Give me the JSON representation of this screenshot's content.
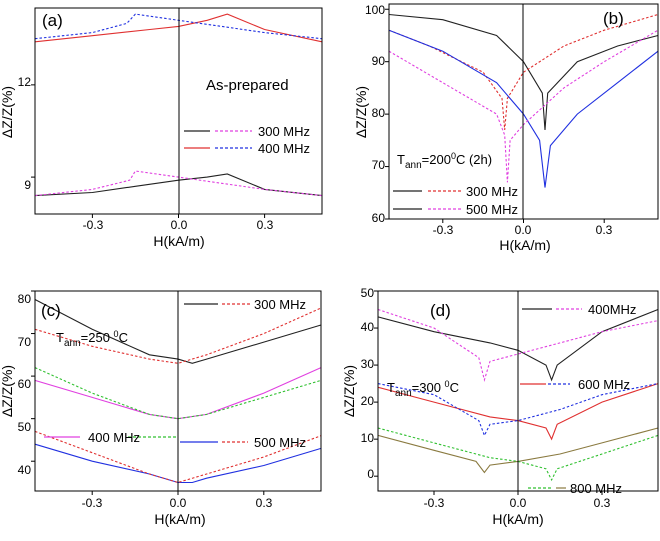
{
  "chart_data": [
    {
      "type": "line",
      "panel": "(a)",
      "annotation": "As-prepared",
      "xlabel": "H(kA/m)",
      "ylabel": "ΔZ/Z(%)",
      "xlim": [
        -0.5,
        0.5
      ],
      "ylim": [
        7.8,
        14.5
      ],
      "xticks": [
        -0.3,
        0.0,
        0.3
      ],
      "xtick_labels": [
        "-0.3",
        "0.0",
        "0.3"
      ],
      "yticks": [
        9,
        12
      ],
      "ytick_labels": [
        "9",
        "12"
      ],
      "legend_rows": [
        {
          "label": "300 MHz",
          "solid_color": "#222222",
          "dashed_color": "#e040e0"
        },
        {
          "label": "400 MHz",
          "solid_color": "#e03030",
          "dashed_color": "#2030e0"
        }
      ],
      "series": [
        {
          "name": "300 MHz solid",
          "color": "#222222",
          "dash": false,
          "x": [
            -0.5,
            -0.3,
            -0.15,
            0,
            0.1,
            0.17,
            0.3,
            0.5
          ],
          "y": [
            8.4,
            8.5,
            8.7,
            8.9,
            9.0,
            9.1,
            8.6,
            8.4
          ]
        },
        {
          "name": "300 MHz dashed",
          "color": "#e040e0",
          "dash": true,
          "x": [
            -0.5,
            -0.3,
            -0.17,
            -0.15,
            0,
            0.15,
            0.3,
            0.5
          ],
          "y": [
            8.4,
            8.6,
            8.9,
            9.2,
            9.0,
            8.8,
            8.6,
            8.4
          ]
        },
        {
          "name": "400 MHz solid",
          "color": "#e03030",
          "dash": false,
          "x": [
            -0.5,
            -0.3,
            -0.1,
            0,
            0.1,
            0.17,
            0.3,
            0.5
          ],
          "y": [
            13.4,
            13.6,
            13.8,
            13.9,
            14.1,
            14.3,
            13.8,
            13.4
          ]
        },
        {
          "name": "400 MHz dashed",
          "color": "#2030e0",
          "dash": true,
          "x": [
            -0.5,
            -0.3,
            -0.18,
            -0.15,
            0,
            0.15,
            0.3,
            0.5
          ],
          "y": [
            13.5,
            13.7,
            14.0,
            14.3,
            14.1,
            13.9,
            13.7,
            13.5
          ]
        }
      ]
    },
    {
      "type": "line",
      "panel": "(b)",
      "annotation_parts": [
        "T",
        "ann",
        "=200",
        "0",
        "C (2h)"
      ],
      "xlabel": "H(kA/m)",
      "ylabel": "ΔZ/Z(%)",
      "xlim": [
        -0.5,
        0.5
      ],
      "ylim": [
        60,
        101
      ],
      "xticks": [
        -0.3,
        0.0,
        0.3
      ],
      "xtick_labels": [
        "-0.3",
        "0.0",
        "0.3"
      ],
      "yticks": [
        60,
        70,
        80,
        90,
        100
      ],
      "ytick_labels": [
        "60",
        "70",
        "80",
        "90",
        "100"
      ],
      "legend_rows": [
        {
          "label": "300 MHz",
          "solid_color": "#222222",
          "dashed_color": "#e03030"
        },
        {
          "label": "500 MHz",
          "solid_color": "#222222",
          "dashed_color": "#e040e0"
        }
      ],
      "series": [
        {
          "name": "300 MHz solid",
          "color": "#222222",
          "dash": false,
          "x": [
            -0.5,
            -0.3,
            -0.1,
            0,
            0.07,
            0.08,
            0.09,
            0.2,
            0.35,
            0.5
          ],
          "y": [
            99,
            98,
            95,
            90,
            84,
            77,
            84,
            90,
            93,
            95
          ]
        },
        {
          "name": "300 MHz dashed",
          "color": "#e03030",
          "dash": true,
          "x": [
            -0.5,
            -0.35,
            -0.15,
            -0.08,
            -0.07,
            -0.06,
            0,
            0.15,
            0.3,
            0.5
          ],
          "y": [
            96,
            93,
            88,
            83,
            77,
            83,
            88,
            93,
            96,
            99
          ]
        },
        {
          "name": "500 MHz solid",
          "color": "#2030e0",
          "dash": false,
          "x": [
            -0.5,
            -0.3,
            -0.1,
            0,
            0.06,
            0.08,
            0.1,
            0.2,
            0.35,
            0.5
          ],
          "y": [
            96,
            92,
            86,
            80,
            75,
            66,
            74,
            80,
            86,
            92
          ]
        },
        {
          "name": "500 MHz dashed",
          "color": "#e040e0",
          "dash": true,
          "x": [
            -0.5,
            -0.3,
            -0.1,
            -0.07,
            -0.06,
            -0.05,
            0,
            0.15,
            0.3,
            0.5
          ],
          "y": [
            92,
            86,
            80,
            76,
            67,
            75,
            78,
            85,
            90,
            96
          ]
        }
      ]
    },
    {
      "type": "line",
      "panel": "(c)",
      "annotation_parts": [
        "T",
        "ann",
        "=250 ",
        "0",
        "C"
      ],
      "xlabel": "H(kA/m)",
      "ylabel": "ΔZ/Z(%)",
      "xlim": [
        -0.5,
        0.5
      ],
      "ylim": [
        33,
        80
      ],
      "xticks": [
        -0.3,
        0.0,
        0.3
      ],
      "xtick_labels": [
        "-0.3",
        "0.0",
        "0.3"
      ],
      "yticks": [
        40,
        50,
        60,
        70,
        80
      ],
      "ytick_labels": [
        "40",
        "50",
        "60",
        "70",
        "80"
      ],
      "legend_rows": [
        {
          "label": "300 MHz",
          "solid_color": "#222222",
          "dashed_color": "#e03030"
        },
        {
          "label": "400 MHz",
          "solid_color": "#e040e0",
          "dashed_color": "#30c030"
        },
        {
          "label": "500 MHz",
          "solid_color": "#2030e0",
          "dashed_color": "#e03030"
        }
      ],
      "series": [
        {
          "name": "300 MHz solid",
          "color": "#222222",
          "dash": false,
          "x": [
            -0.5,
            -0.3,
            -0.1,
            0,
            0.05,
            0.1,
            0.3,
            0.5
          ],
          "y": [
            78,
            71,
            65,
            64,
            63,
            64,
            68,
            72
          ]
        },
        {
          "name": "300 MHz dashed",
          "color": "#e03030",
          "dash": true,
          "x": [
            -0.5,
            -0.3,
            -0.1,
            0,
            0.1,
            0.3,
            0.5
          ],
          "y": [
            71,
            67,
            64,
            63,
            65,
            70,
            76
          ]
        },
        {
          "name": "400 MHz solid",
          "color": "#e040e0",
          "dash": false,
          "x": [
            -0.5,
            -0.3,
            -0.1,
            0,
            0.1,
            0.3,
            0.5
          ],
          "y": [
            59,
            55,
            51,
            50,
            51,
            56,
            62
          ]
        },
        {
          "name": "400 MHz dashed",
          "color": "#30c030",
          "dash": true,
          "x": [
            -0.5,
            -0.3,
            -0.1,
            0,
            0.1,
            0.3,
            0.5
          ],
          "y": [
            62,
            56,
            51,
            50,
            51,
            55,
            59
          ]
        },
        {
          "name": "500 MHz solid",
          "color": "#2030e0",
          "dash": false,
          "x": [
            -0.5,
            -0.3,
            -0.1,
            0,
            0.05,
            0.1,
            0.3,
            0.5
          ],
          "y": [
            44,
            40,
            37,
            35,
            35,
            36,
            39,
            43
          ]
        },
        {
          "name": "500 MHz dashed",
          "color": "#e03030",
          "dash": true,
          "x": [
            -0.5,
            -0.3,
            -0.1,
            0,
            0.1,
            0.3,
            0.5
          ],
          "y": [
            47,
            42,
            37,
            35,
            37,
            41,
            46
          ]
        }
      ]
    },
    {
      "type": "line",
      "panel": "(d)",
      "annotation_parts": [
        "T",
        "ann",
        "=300 ",
        "0",
        "C"
      ],
      "xlabel": "H(kA/m)",
      "ylabel": "ΔZ/Z(%)",
      "xlim": [
        -0.5,
        0.5
      ],
      "ylim": [
        -4,
        50
      ],
      "xticks": [
        -0.3,
        0.0,
        0.3
      ],
      "xtick_labels": [
        "-0.3",
        "0.0",
        "0.3"
      ],
      "yticks": [
        0,
        10,
        20,
        30,
        40,
        50
      ],
      "ytick_labels": [
        "0",
        "10",
        "20",
        "30",
        "40",
        "50"
      ],
      "legend_rows": [
        {
          "label": "400MHz",
          "solid_color": "#222222",
          "dashed_color": "#e040e0"
        },
        {
          "label": "600 MHz",
          "solid_color": "#e03030",
          "dashed_color": "#2030e0"
        },
        {
          "label": "800 MHz",
          "solid_color": "#8a7a40",
          "dashed_color": "#30c030"
        }
      ],
      "series": [
        {
          "name": "400MHz solid",
          "color": "#222222",
          "dash": false,
          "x": [
            -0.5,
            -0.3,
            -0.1,
            0,
            0.1,
            0.12,
            0.14,
            0.3,
            0.5
          ],
          "y": [
            43,
            39,
            36,
            34,
            30,
            26,
            30,
            39,
            45
          ]
        },
        {
          "name": "400MHz dashed",
          "color": "#e040e0",
          "dash": true,
          "x": [
            -0.5,
            -0.3,
            -0.14,
            -0.12,
            -0.1,
            0,
            0.15,
            0.3,
            0.5
          ],
          "y": [
            45,
            40,
            32,
            26,
            31,
            33,
            36,
            39,
            42
          ]
        },
        {
          "name": "600 MHz solid",
          "color": "#e03030",
          "dash": false,
          "x": [
            -0.5,
            -0.3,
            -0.1,
            0,
            0.1,
            0.12,
            0.14,
            0.3,
            0.5
          ],
          "y": [
            24,
            20,
            16,
            15,
            13,
            10,
            14,
            20,
            25
          ]
        },
        {
          "name": "600 MHz dashed",
          "color": "#2030e0",
          "dash": true,
          "x": [
            -0.5,
            -0.3,
            -0.14,
            -0.12,
            -0.1,
            0,
            0.15,
            0.3,
            0.5
          ],
          "y": [
            25,
            22,
            15,
            11,
            14,
            15,
            18,
            22,
            25
          ]
        },
        {
          "name": "800 MHz solid",
          "color": "#8a7a40",
          "dash": false,
          "x": [
            -0.5,
            -0.3,
            -0.15,
            -0.12,
            -0.1,
            0,
            0.15,
            0.3,
            0.5
          ],
          "y": [
            11,
            7,
            4,
            1,
            3,
            4,
            6,
            9,
            13
          ]
        },
        {
          "name": "800 MHz dashed",
          "color": "#30c030",
          "dash": true,
          "x": [
            -0.5,
            -0.3,
            -0.1,
            0,
            0.1,
            0.12,
            0.14,
            0.3,
            0.5
          ],
          "y": [
            13,
            9,
            5,
            4,
            2,
            -1,
            2,
            6,
            11
          ]
        }
      ]
    }
  ]
}
